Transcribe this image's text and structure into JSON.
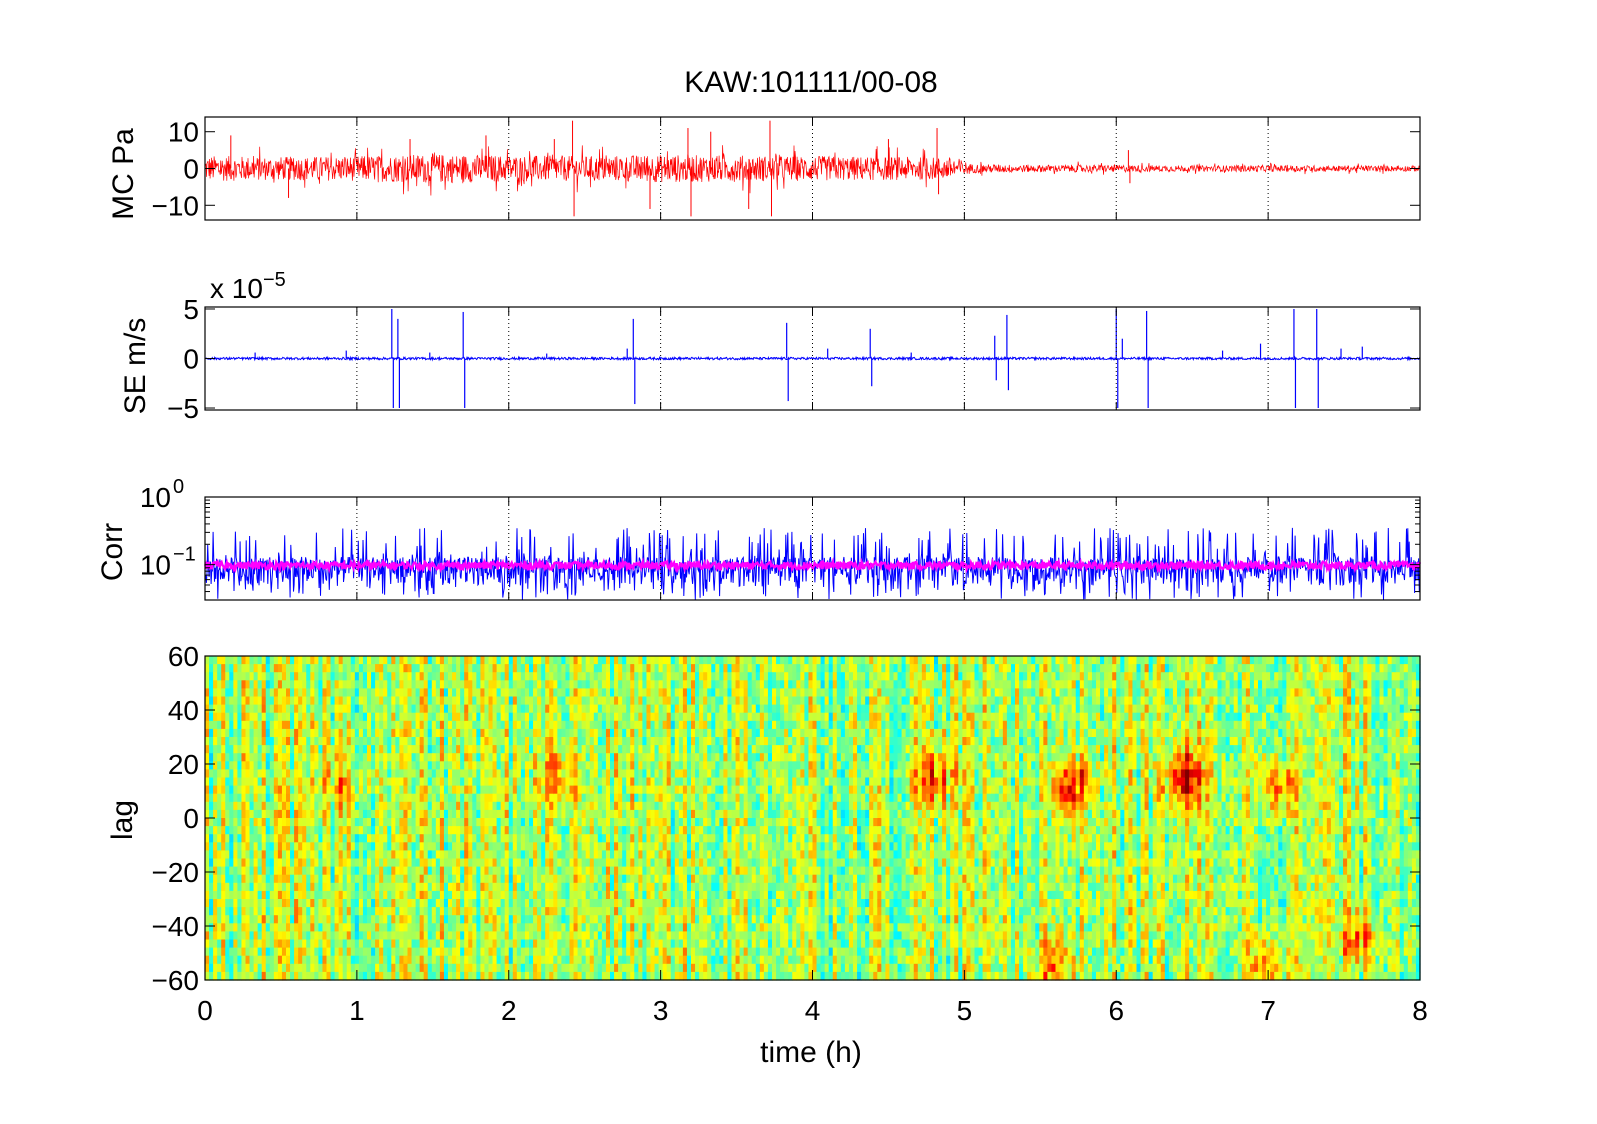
{
  "figure": {
    "title": "KAW:101111/00-08",
    "xlabel": "time (h)"
  },
  "chart_data": [
    {
      "type": "line",
      "panel": "mc",
      "ylabel": "MC Pa",
      "xlim": [
        0,
        8
      ],
      "ylim": [
        -14,
        14
      ],
      "yticks": [
        10,
        0,
        -10
      ],
      "yticklabels": [
        "10",
        "0",
        "−10"
      ],
      "grid": "x-dotted",
      "color": "#ff0000",
      "envelope": {
        "x": [
          0,
          0.5,
          1,
          1.5,
          2,
          2.5,
          3,
          3.5,
          4,
          4.5,
          4.95,
          5.05,
          5.5,
          6,
          6.5,
          7,
          7.5,
          8
        ],
        "amplitude": [
          3.5,
          3.2,
          3.4,
          4.0,
          3.6,
          3.4,
          3.8,
          3.6,
          3.4,
          3.2,
          3.0,
          1.2,
          1.0,
          1.0,
          0.8,
          0.9,
          0.8,
          0.8
        ]
      },
      "spikes": [
        {
          "x": 0.17,
          "y": 9
        },
        {
          "x": 0.55,
          "y": -8
        },
        {
          "x": 1.35,
          "y": 8
        },
        {
          "x": 1.85,
          "y": 9
        },
        {
          "x": 2.3,
          "y": 8
        },
        {
          "x": 2.42,
          "y": 13
        },
        {
          "x": 2.43,
          "y": -13
        },
        {
          "x": 2.93,
          "y": -11
        },
        {
          "x": 3.18,
          "y": 11
        },
        {
          "x": 3.2,
          "y": -13
        },
        {
          "x": 3.33,
          "y": 10
        },
        {
          "x": 3.58,
          "y": -11
        },
        {
          "x": 3.72,
          "y": 13
        },
        {
          "x": 3.73,
          "y": -13
        },
        {
          "x": 4.5,
          "y": 8
        },
        {
          "x": 4.82,
          "y": 11
        },
        {
          "x": 4.83,
          "y": -7
        },
        {
          "x": 6.08,
          "y": 5
        },
        {
          "x": 6.09,
          "y": -4
        }
      ]
    },
    {
      "type": "line",
      "panel": "se",
      "ylabel": "SE m/s",
      "exponent_label": "x 10",
      "exponent": "−5",
      "xlim": [
        0,
        8
      ],
      "ylim": [
        -5.2,
        5.2
      ],
      "yticks": [
        5,
        0,
        -5
      ],
      "yticklabels": [
        "5",
        "0",
        "−5"
      ],
      "grid": "x-dotted",
      "color": "#0000ff",
      "noise_amplitude": 0.12,
      "spikes": [
        {
          "x": 0.33,
          "y": 0.6
        },
        {
          "x": 0.93,
          "y": 0.8
        },
        {
          "x": 1.23,
          "y": 5
        },
        {
          "x": 1.24,
          "y": -5
        },
        {
          "x": 1.27,
          "y": 4
        },
        {
          "x": 1.28,
          "y": -5
        },
        {
          "x": 1.48,
          "y": 0.6
        },
        {
          "x": 1.7,
          "y": 4.7
        },
        {
          "x": 1.71,
          "y": -5
        },
        {
          "x": 2.25,
          "y": 0.5
        },
        {
          "x": 2.78,
          "y": 1
        },
        {
          "x": 2.82,
          "y": 4
        },
        {
          "x": 2.83,
          "y": -4.6
        },
        {
          "x": 3.83,
          "y": 3.6
        },
        {
          "x": 3.84,
          "y": -4.3
        },
        {
          "x": 4.1,
          "y": 1
        },
        {
          "x": 4.38,
          "y": 3
        },
        {
          "x": 4.39,
          "y": -2.8
        },
        {
          "x": 4.65,
          "y": 0.6
        },
        {
          "x": 5.2,
          "y": 2.3
        },
        {
          "x": 5.21,
          "y": -2.2
        },
        {
          "x": 5.28,
          "y": 4.4
        },
        {
          "x": 5.29,
          "y": -3.2
        },
        {
          "x": 6.0,
          "y": 5
        },
        {
          "x": 6.01,
          "y": -5
        },
        {
          "x": 6.04,
          "y": 2
        },
        {
          "x": 6.2,
          "y": 4.8
        },
        {
          "x": 6.21,
          "y": -5
        },
        {
          "x": 6.7,
          "y": 0.8
        },
        {
          "x": 6.95,
          "y": 1.5
        },
        {
          "x": 7.17,
          "y": 5
        },
        {
          "x": 7.18,
          "y": -5
        },
        {
          "x": 7.32,
          "y": 5
        },
        {
          "x": 7.33,
          "y": -5
        },
        {
          "x": 7.48,
          "y": 1
        },
        {
          "x": 7.62,
          "y": 1.2
        }
      ]
    },
    {
      "type": "line",
      "panel": "corr",
      "ylabel": "Corr",
      "yscale": "log",
      "xlim": [
        0,
        8
      ],
      "ylim": [
        0.03,
        1
      ],
      "yticks": [
        1,
        0.1
      ],
      "yticklabels": [
        {
          "base": "10",
          "exp": "0"
        },
        {
          "base": "10",
          "exp": "−1"
        }
      ],
      "grid": "x-dotted",
      "series": [
        {
          "color": "#0000ff",
          "band_low": 0.05,
          "band_high": 0.13,
          "peak_max": 0.35
        },
        {
          "color": "#ff00ff",
          "band_low": 0.085,
          "band_high": 0.11
        }
      ]
    },
    {
      "type": "heatmap",
      "panel": "lag",
      "ylabel": "lag",
      "xlim": [
        0,
        8
      ],
      "ylim": [
        -60,
        60
      ],
      "yticks": [
        60,
        40,
        20,
        0,
        -20,
        -40,
        -60
      ],
      "yticklabels": [
        "60",
        "40",
        "20",
        "0",
        "−20",
        "−40",
        "−60"
      ],
      "xticks": [
        0,
        1,
        2,
        3,
        4,
        5,
        6,
        7,
        8
      ],
      "xticklabels": [
        "0",
        "1",
        "2",
        "3",
        "4",
        "5",
        "6",
        "7",
        "8"
      ],
      "colormap": "jet",
      "clim": [
        -1,
        1
      ],
      "base_value": 0.1,
      "hotspots": [
        {
          "x": 0.9,
          "lag": 12,
          "value": 0.35
        },
        {
          "x": 2.3,
          "lag": 15,
          "value": 0.4
        },
        {
          "x": 4.8,
          "lag": 15,
          "value": 0.55
        },
        {
          "x": 5.7,
          "lag": 12,
          "value": 0.65
        },
        {
          "x": 6.45,
          "lag": 15,
          "value": 0.75
        },
        {
          "x": 7.05,
          "lag": 12,
          "value": 0.55
        },
        {
          "x": 7.0,
          "lag": -55,
          "value": 0.5
        },
        {
          "x": 5.6,
          "lag": -55,
          "value": 0.45
        },
        {
          "x": 7.6,
          "lag": -45,
          "value": 0.4
        }
      ]
    }
  ]
}
